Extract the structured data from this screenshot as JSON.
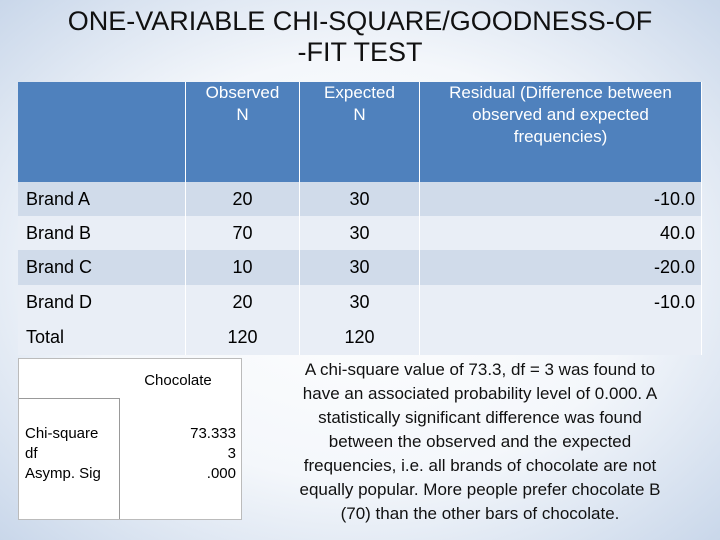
{
  "title_lines": [
    "ONE-VARIABLE CHI-SQUARE/GOODNESS-OF",
    "-FIT TEST"
  ],
  "table": {
    "header": [
      "",
      "Observed N",
      "Expected N",
      "Residual (Difference between observed and expected frequencies)"
    ],
    "rows": [
      [
        "Brand A",
        "20",
        "30",
        "-10.0"
      ],
      [
        "Brand B",
        "70",
        "30",
        "40.0"
      ],
      [
        "Brand C",
        "10",
        "30",
        "-20.0"
      ],
      [
        "Brand D",
        "20",
        "30",
        "-10.0"
      ],
      [
        "Total",
        "120",
        "120",
        ""
      ]
    ]
  },
  "test_table": {
    "column": "Chocolate",
    "labels": [
      "Chi-square",
      "df",
      "Asymp. Sig"
    ],
    "values": [
      "73.333",
      "3",
      ".000"
    ]
  },
  "paragraph_lines": [
    "A chi-square value of 73.3, df = 3 was found to",
    "have an associated probability level of 0.000. A",
    "statistically significant difference was found",
    "between the observed and the expected",
    "frequencies, i.e. all brands of chocolate are not",
    "equally popular. More people prefer chocolate B",
    "(70) than the other bars of chocolate."
  ]
}
